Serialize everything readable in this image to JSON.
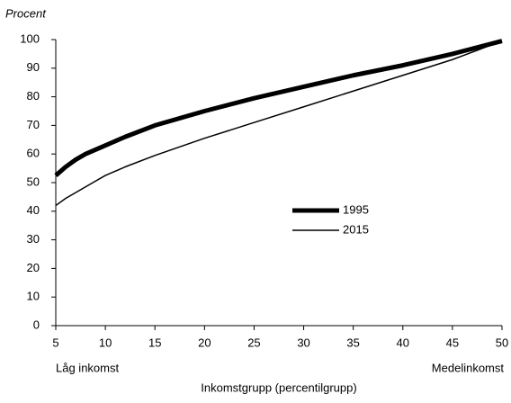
{
  "chart_data": {
    "type": "line",
    "y_label": "Procent",
    "x_label": "Inkomstgrupp (percentilgrupp)",
    "annotations": [
      "Låg inkomst",
      "Medelinkomst"
    ],
    "x": [
      5,
      6,
      7,
      8,
      9,
      10,
      12,
      15,
      20,
      25,
      30,
      35,
      40,
      45,
      50
    ],
    "series": [
      {
        "name": "1995",
        "color": "#000000",
        "linewidth": 5,
        "values": [
          52.5,
          55.5,
          58,
          60,
          61.5,
          63,
          66,
          70,
          75,
          79.5,
          83.5,
          87.5,
          91,
          95,
          99.5
        ]
      },
      {
        "name": "2015",
        "color": "#000000",
        "linewidth": 1.5,
        "values": [
          42,
          44.5,
          46.5,
          48.5,
          50.5,
          52.5,
          55.5,
          59.5,
          65.5,
          71,
          76.5,
          82,
          87.5,
          93,
          99.5
        ]
      }
    ],
    "xlim": [
      5,
      50
    ],
    "xticks": [
      5,
      10,
      15,
      20,
      25,
      30,
      35,
      40,
      45,
      50
    ],
    "ylim": [
      0,
      100
    ],
    "yticks": [
      0,
      10,
      20,
      30,
      40,
      50,
      60,
      70,
      80,
      90,
      100
    ],
    "grid": false,
    "legend": "center"
  }
}
